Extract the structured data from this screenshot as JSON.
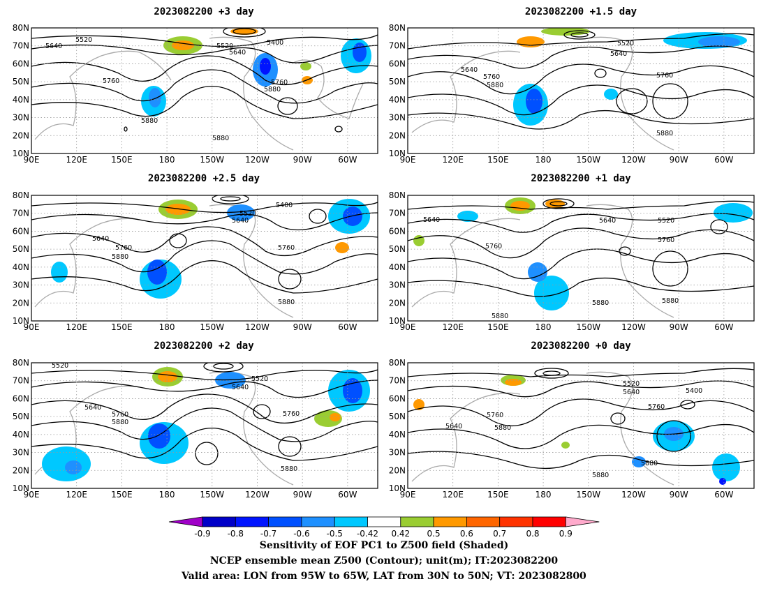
{
  "panels": [
    {
      "title": "2023082200 +3 day",
      "contour_labels": [
        "5520",
        "5640",
        "5520",
        "5640",
        "5400",
        "5760",
        "5760",
        "5880",
        "5880",
        "5880"
      ]
    },
    {
      "title": "2023082200 +1.5 day",
      "contour_labels": [
        "5520",
        "5640",
        "5640",
        "5760",
        "5880",
        "5760",
        "5880"
      ]
    },
    {
      "title": "2023082200 +2.5 day",
      "contour_labels": [
        "5520",
        "5400",
        "5640",
        "5640",
        "5760",
        "5880",
        "5760",
        "5880"
      ]
    },
    {
      "title": "2023082200 +1 day",
      "contour_labels": [
        "5640",
        "5640",
        "5520",
        "5760",
        "5760",
        "5880",
        "5880",
        "5880"
      ]
    },
    {
      "title": "2023082200 +2 day",
      "contour_labels": [
        "5520",
        "5520",
        "5640",
        "5640",
        "5760",
        "5880",
        "5760",
        "5880"
      ]
    },
    {
      "title": "2023082200 +0 day",
      "contour_labels": [
        "5520",
        "5640",
        "5400",
        "5760",
        "5640",
        "5760",
        "5880",
        "5880",
        "5880"
      ]
    }
  ],
  "axes": {
    "lat_labels": [
      "10N",
      "20N",
      "30N",
      "40N",
      "50N",
      "60N",
      "70N",
      "80N"
    ],
    "lon_labels": [
      "90E",
      "120E",
      "150E",
      "180",
      "150W",
      "120W",
      "90W",
      "60W"
    ]
  },
  "colorbar": {
    "labels": [
      "-0.9",
      "-0.8",
      "-0.7",
      "-0.6",
      "-0.5",
      "-0.42",
      "0.42",
      "0.5",
      "0.6",
      "0.7",
      "0.8",
      "0.9"
    ],
    "colors": [
      "#a000c8",
      "#0000c8",
      "#0014ff",
      "#0050ff",
      "#1e90ff",
      "#00c8ff",
      "#ffffff",
      "#9acd32",
      "#ff9900",
      "#ff6600",
      "#ff3300",
      "#ff0000",
      "#ffaacc"
    ]
  },
  "caption": {
    "line1": "Sensitivity of EOF PC1 to Z500 field (Shaded)",
    "line2": "NCEP ensemble mean Z500 (Contour); unit(m); IT:2023082200",
    "line3": "Valid area: LON from 95W to 65W, LAT from 30N to 50N; VT: 2023082800"
  }
}
